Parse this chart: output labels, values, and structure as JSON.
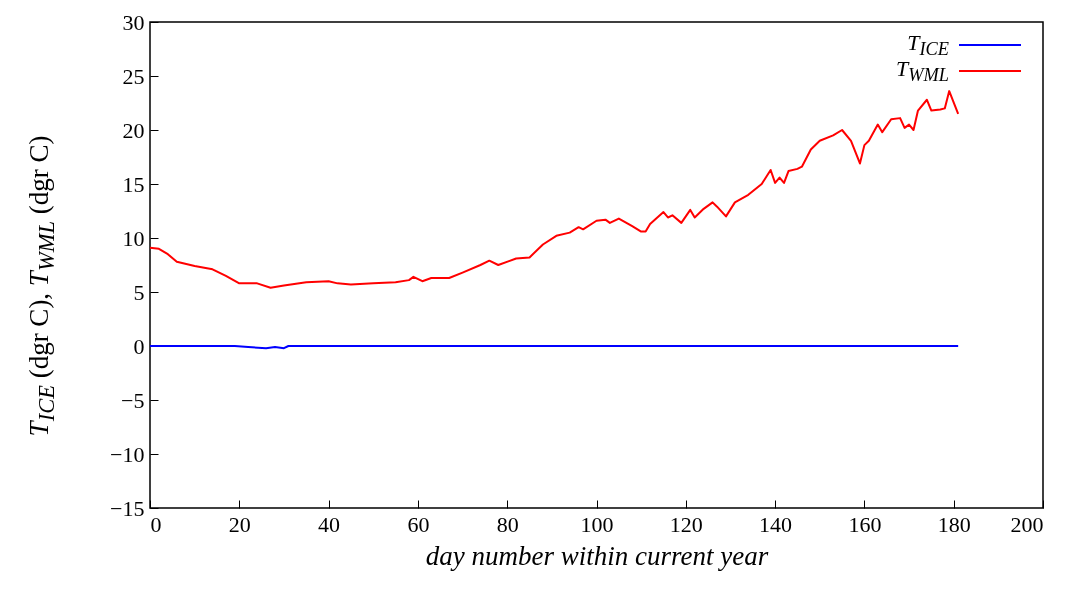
{
  "chart_data": {
    "type": "line",
    "xlabel": "day number within current year",
    "ylabel": "T$_{ICE}$ (dgr C), T$_{WML}$ (dgr C)",
    "xlim": [
      0,
      200
    ],
    "xticks": [
      0,
      20,
      40,
      60,
      80,
      100,
      120,
      140,
      160,
      180,
      200
    ],
    "ylim": [
      -15,
      30
    ],
    "yticks": [
      -15,
      -10,
      -5,
      0,
      5,
      10,
      15,
      20,
      25,
      30
    ],
    "grid": false,
    "legend": "top right",
    "line_style": "solid",
    "marker": "none",
    "series": [
      {
        "name": "T$_{ICE}$",
        "color": "#0000ff",
        "x": [
          0,
          19,
          22,
          26,
          28,
          30,
          31,
          181
        ],
        "values": [
          0,
          0,
          -0.1,
          -0.2,
          -0.1,
          -0.2,
          0,
          0
        ]
      },
      {
        "name": "T$_{WML}$",
        "color": "#ff0000",
        "x": [
          0,
          2,
          4,
          6,
          10,
          14,
          17,
          20,
          24,
          27,
          30,
          35,
          40,
          42,
          45,
          50,
          55,
          58,
          59,
          61,
          63,
          67,
          70,
          74,
          76,
          78,
          82,
          85,
          88,
          91,
          94,
          96,
          97,
          100,
          102,
          103,
          105,
          108,
          110,
          111,
          112,
          115,
          116,
          117,
          119,
          121,
          122,
          124,
          126,
          127,
          129,
          131,
          134,
          137,
          139,
          140,
          141,
          142,
          143,
          145,
          146,
          148,
          150,
          153,
          155,
          157,
          159,
          160,
          161,
          163,
          164,
          166,
          168,
          169,
          170,
          171,
          172,
          174,
          175,
          177,
          178,
          179,
          181
        ],
        "values": [
          9.1,
          9.0,
          8.5,
          7.8,
          7.4,
          7.1,
          6.5,
          5.8,
          5.8,
          5.4,
          5.6,
          5.9,
          6.0,
          5.8,
          5.7,
          5.8,
          5.9,
          6.1,
          6.4,
          6.0,
          6.3,
          6.3,
          6.8,
          7.5,
          7.9,
          7.5,
          8.1,
          8.2,
          9.4,
          10.2,
          10.5,
          11.0,
          10.8,
          11.6,
          11.7,
          11.4,
          11.8,
          11.1,
          10.6,
          10.6,
          11.3,
          12.4,
          11.9,
          12.1,
          11.4,
          12.6,
          11.9,
          12.7,
          13.3,
          12.9,
          12.0,
          13.3,
          14.0,
          15.0,
          16.3,
          15.1,
          15.6,
          15.1,
          16.2,
          16.4,
          16.6,
          18.2,
          19.0,
          19.5,
          20.0,
          19.0,
          16.9,
          18.6,
          19.0,
          20.5,
          19.8,
          21.0,
          21.1,
          20.2,
          20.5,
          20.0,
          21.8,
          22.8,
          21.8,
          21.9,
          22.0,
          23.6,
          21.5
        ]
      }
    ]
  }
}
